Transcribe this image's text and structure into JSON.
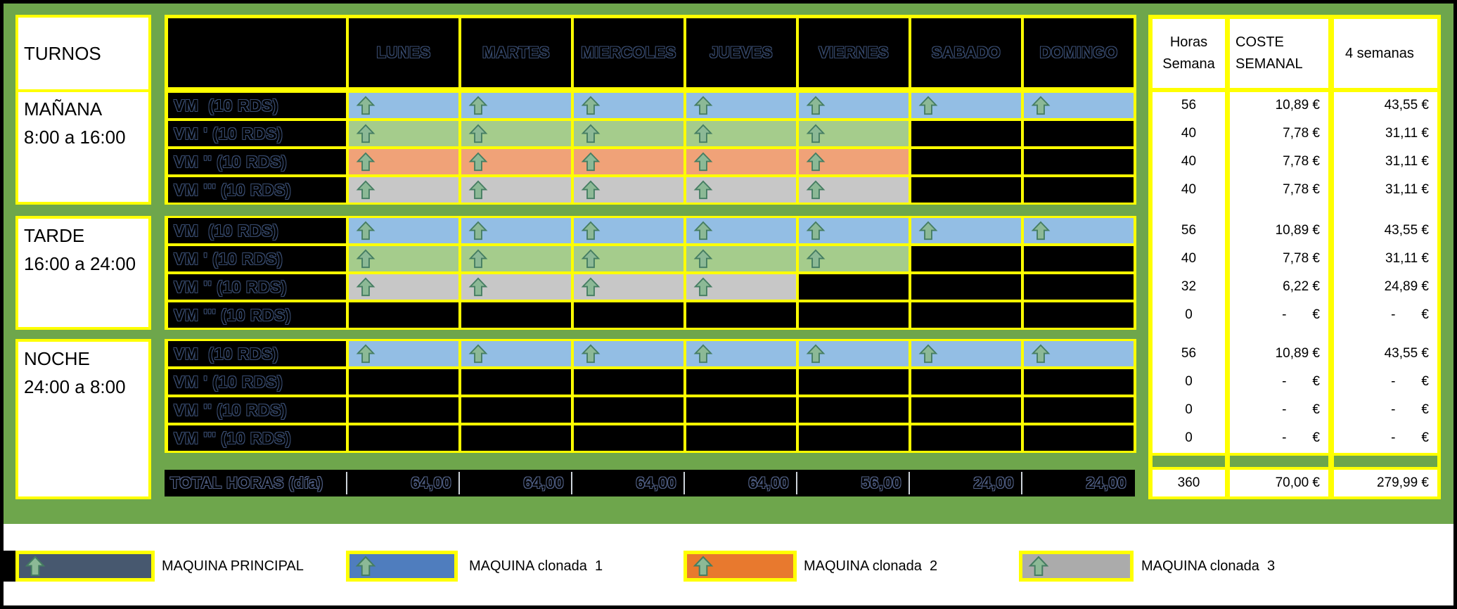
{
  "palette": {
    "background_green": "#6EA64C",
    "grid_yellow": "#FFFF00",
    "cell_blue": "#93BEE4",
    "cell_green": "#A5CC8C",
    "cell_orange": "#F0A278",
    "cell_gray": "#C7C7C7",
    "principal": "#47586F",
    "clone1": "#4F7DBE",
    "clone2": "#E8792E",
    "clone3": "#ABABAB",
    "arrow_fill": "#8CB996",
    "arrow_stroke": "#457D62"
  },
  "left_panel": {
    "title": "TURNOS",
    "sections": [
      {
        "name": "MAÑANA",
        "range": "8:00 a 16:00"
      },
      {
        "name": "TARDE",
        "range": "16:00 a 24:00"
      },
      {
        "name": "NOCHE",
        "range": "24:00 a 8:00"
      }
    ]
  },
  "days": [
    "LUNES",
    "MARTES",
    "MIERCOLES",
    "JUEVES",
    "VIERNES",
    "SABADO",
    "DOMINGO"
  ],
  "right_headers": {
    "horas": "Horas Semana",
    "coste": "COSTE SEMANAL",
    "semanas4": "4 semanas"
  },
  "sections": [
    {
      "turno": "MAÑANA",
      "rows": [
        {
          "label": "VM  (10 RDS)",
          "color": "blue",
          "days": [
            1,
            1,
            1,
            1,
            1,
            1,
            1
          ],
          "horas": "56",
          "coste": "10,89 €",
          "semanas4": "43,55 €"
        },
        {
          "label": "VM ' (10 RDS)",
          "color": "green",
          "days": [
            1,
            1,
            1,
            1,
            1,
            0,
            0
          ],
          "horas": "40",
          "coste": "7,78 €",
          "semanas4": "31,11 €"
        },
        {
          "label": "VM '' (10 RDS)",
          "color": "orange",
          "days": [
            1,
            1,
            1,
            1,
            1,
            0,
            0
          ],
          "horas": "40",
          "coste": "7,78 €",
          "semanas4": "31,11 €"
        },
        {
          "label": "VM ''' (10 RDS)",
          "color": "gray",
          "days": [
            1,
            1,
            1,
            1,
            1,
            0,
            0
          ],
          "horas": "40",
          "coste": "7,78 €",
          "semanas4": "31,11 €"
        }
      ]
    },
    {
      "turno": "TARDE",
      "rows": [
        {
          "label": "VM  (10 RDS)",
          "color": "blue",
          "days": [
            1,
            1,
            1,
            1,
            1,
            1,
            1
          ],
          "horas": "56",
          "coste": "10,89 €",
          "semanas4": "43,55 €"
        },
        {
          "label": "VM ' (10 RDS)",
          "color": "green",
          "days": [
            1,
            1,
            1,
            1,
            1,
            0,
            0
          ],
          "horas": "40",
          "coste": "7,78 €",
          "semanas4": "31,11 €"
        },
        {
          "label": "VM '' (10 RDS)",
          "color": "gray",
          "days": [
            1,
            1,
            1,
            1,
            0,
            0,
            0
          ],
          "horas": "32",
          "coste": "6,22 €",
          "semanas4": "24,89 €"
        },
        {
          "label": "VM ''' (10 RDS)",
          "color": "none",
          "days": [
            0,
            0,
            0,
            0,
            0,
            0,
            0
          ],
          "horas": "0",
          "coste": "-       €",
          "semanas4": "-       €"
        }
      ]
    },
    {
      "turno": "NOCHE",
      "rows": [
        {
          "label": "VM  (10 RDS)",
          "color": "blue",
          "days": [
            1,
            1,
            1,
            1,
            1,
            1,
            1
          ],
          "horas": "56",
          "coste": "10,89 €",
          "semanas4": "43,55 €"
        },
        {
          "label": "VM ' (10 RDS)",
          "color": "none",
          "days": [
            0,
            0,
            0,
            0,
            0,
            0,
            0
          ],
          "horas": "0",
          "coste": "-       €",
          "semanas4": "-       €"
        },
        {
          "label": "VM '' (10 RDS)",
          "color": "none",
          "days": [
            0,
            0,
            0,
            0,
            0,
            0,
            0
          ],
          "horas": "0",
          "coste": "-       €",
          "semanas4": "-       €"
        },
        {
          "label": "VM ''' (10 RDS)",
          "color": "none",
          "days": [
            0,
            0,
            0,
            0,
            0,
            0,
            0
          ],
          "horas": "0",
          "coste": "-       €",
          "semanas4": "-       €"
        }
      ]
    }
  ],
  "totals": {
    "label": "TOTAL HORAS (día)",
    "per_day": [
      "64,00",
      "64,00",
      "64,00",
      "64,00",
      "56,00",
      "24,00",
      "24,00"
    ],
    "horas": "360",
    "coste": "70,00 €",
    "semanas4": "279,99 €"
  },
  "legend": {
    "items": [
      {
        "label": "MAQUINA PRINCIPAL",
        "color_key": "principal"
      },
      {
        "label": "MAQUINA clonada  1",
        "color_key": "clone1"
      },
      {
        "label": "MAQUINA clonada  2",
        "color_key": "clone2"
      },
      {
        "label": "MAQUINA clonada  3",
        "color_key": "clone3"
      }
    ]
  }
}
